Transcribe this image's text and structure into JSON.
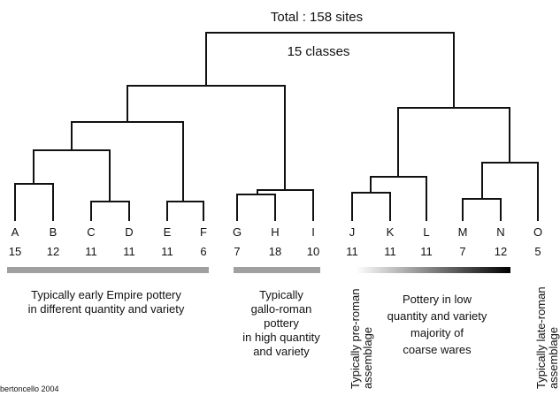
{
  "title": "Total : 158 sites",
  "subtitle": "15 classes",
  "leaves": [
    {
      "label": "A",
      "count": "15"
    },
    {
      "label": "B",
      "count": "12"
    },
    {
      "label": "C",
      "count": "11"
    },
    {
      "label": "D",
      "count": "11"
    },
    {
      "label": "E",
      "count": "11"
    },
    {
      "label": "F",
      "count": "6"
    },
    {
      "label": "G",
      "count": "7"
    },
    {
      "label": "H",
      "count": "18"
    },
    {
      "label": "I",
      "count": "10"
    },
    {
      "label": "J",
      "count": "11"
    },
    {
      "label": "K",
      "count": "11"
    },
    {
      "label": "L",
      "count": "11"
    },
    {
      "label": "M",
      "count": "7"
    },
    {
      "label": "N",
      "count": "12"
    },
    {
      "label": "O",
      "count": "5"
    }
  ],
  "groups": [
    {
      "lines": [
        "Typically early Empire pottery",
        "in different quantity and variety"
      ]
    },
    {
      "lines": [
        "Typically",
        "gallo-roman",
        "pottery",
        "in high quantity",
        "and variety"
      ]
    },
    {
      "lines": [
        "Typically pre-roman",
        "assemblage"
      ]
    },
    {
      "lines": [
        "Pottery in low",
        "quantity and variety",
        "majority of",
        "coarse wares"
      ]
    },
    {
      "lines": [
        "Typically late-roman",
        "assemblage"
      ]
    }
  ],
  "credit": "bertoncello 2004"
}
